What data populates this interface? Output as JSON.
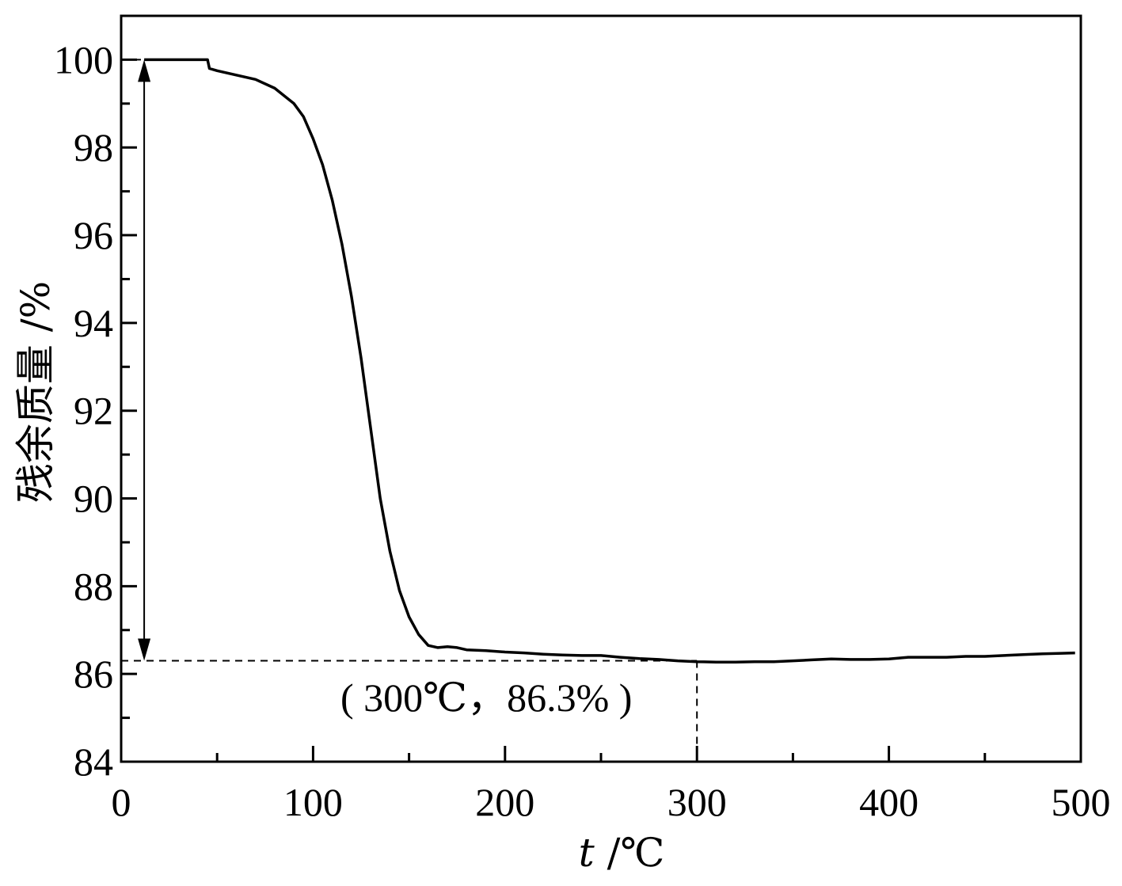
{
  "chart_data": {
    "type": "line",
    "title": "",
    "xlabel_var": "t",
    "xlabel_unit": " /℃",
    "ylabel": "残余质量 /%",
    "xlim": [
      0,
      500
    ],
    "ylim": [
      84,
      101.0
    ],
    "x_ticks": [
      0,
      100,
      200,
      300,
      400,
      500
    ],
    "x_tick_labels": [
      "0",
      "100",
      "200",
      "300",
      "400",
      "500"
    ],
    "y_ticks": [
      84,
      86,
      88,
      90,
      92,
      94,
      96,
      98,
      100
    ],
    "y_tick_labels": [
      "84",
      "86",
      "88",
      "90",
      "92",
      "94",
      "96",
      "98",
      "100"
    ],
    "grid": false,
    "legend": "none",
    "series": [
      {
        "color": "#000000",
        "x": [
          12,
          20,
          30,
          40,
          45,
          46,
          50,
          60,
          70,
          80,
          90,
          95,
          100,
          105,
          110,
          115,
          120,
          125,
          130,
          135,
          140,
          145,
          150,
          155,
          160,
          165,
          170,
          175,
          180,
          190,
          200,
          210,
          220,
          230,
          240,
          250,
          260,
          270,
          280,
          290,
          300,
          310,
          320,
          330,
          340,
          350,
          360,
          370,
          380,
          390,
          400,
          410,
          420,
          430,
          440,
          450,
          460,
          470,
          480,
          490,
          497
        ],
        "y": [
          100.0,
          100.0,
          100.0,
          100.0,
          100.0,
          99.8,
          99.75,
          99.65,
          99.55,
          99.35,
          99.0,
          98.7,
          98.2,
          97.6,
          96.8,
          95.8,
          94.6,
          93.2,
          91.6,
          90.0,
          88.8,
          87.9,
          87.3,
          86.9,
          86.65,
          86.6,
          86.62,
          86.6,
          86.55,
          86.53,
          86.5,
          86.48,
          86.45,
          86.43,
          86.42,
          86.42,
          86.38,
          86.35,
          86.33,
          86.3,
          86.28,
          86.27,
          86.27,
          86.28,
          86.28,
          86.3,
          86.32,
          86.34,
          86.33,
          86.33,
          86.34,
          86.38,
          86.38,
          86.38,
          86.4,
          86.4,
          86.42,
          86.44,
          86.46,
          86.47,
          86.48
        ]
      }
    ],
    "annotations": {
      "point_label": "( 300℃，86.3% )",
      "point": {
        "x": 300,
        "y": 86.3
      },
      "start_level": 100,
      "arrow_x": 12
    }
  }
}
